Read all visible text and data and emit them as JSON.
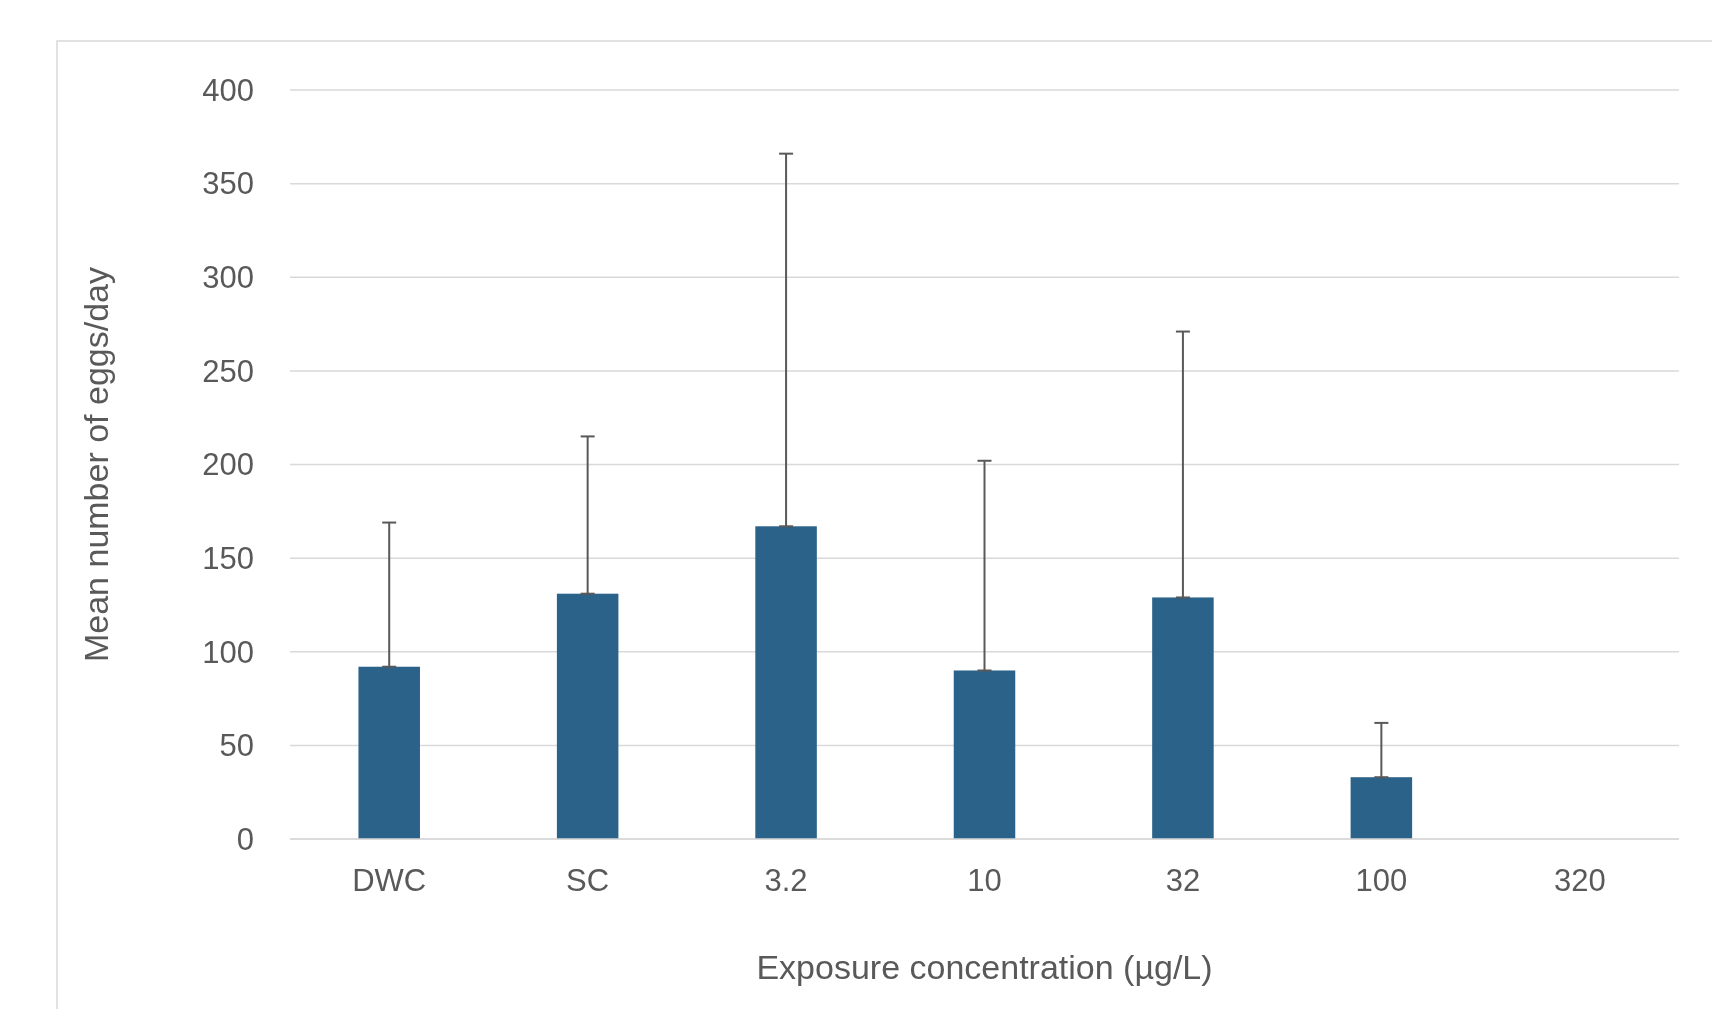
{
  "chart_data": {
    "type": "bar",
    "xlabel": "Exposure concentration (µg/L)",
    "ylabel": "Mean number of eggs/day",
    "categories": [
      "DWC",
      "SC",
      "3.2",
      "10",
      "32",
      "100",
      "320"
    ],
    "values": [
      92,
      131,
      167,
      90,
      129,
      33,
      null
    ],
    "errors": [
      [
        92,
        169
      ],
      [
        131,
        215
      ],
      [
        167,
        366
      ],
      [
        90,
        202
      ],
      [
        129,
        271
      ],
      [
        33,
        62
      ],
      null
    ],
    "color": "#2a6289",
    "ylim": [
      0,
      400
    ],
    "yticks": [
      0,
      50,
      100,
      150,
      200,
      250,
      300,
      350,
      400
    ],
    "grid": "y"
  }
}
